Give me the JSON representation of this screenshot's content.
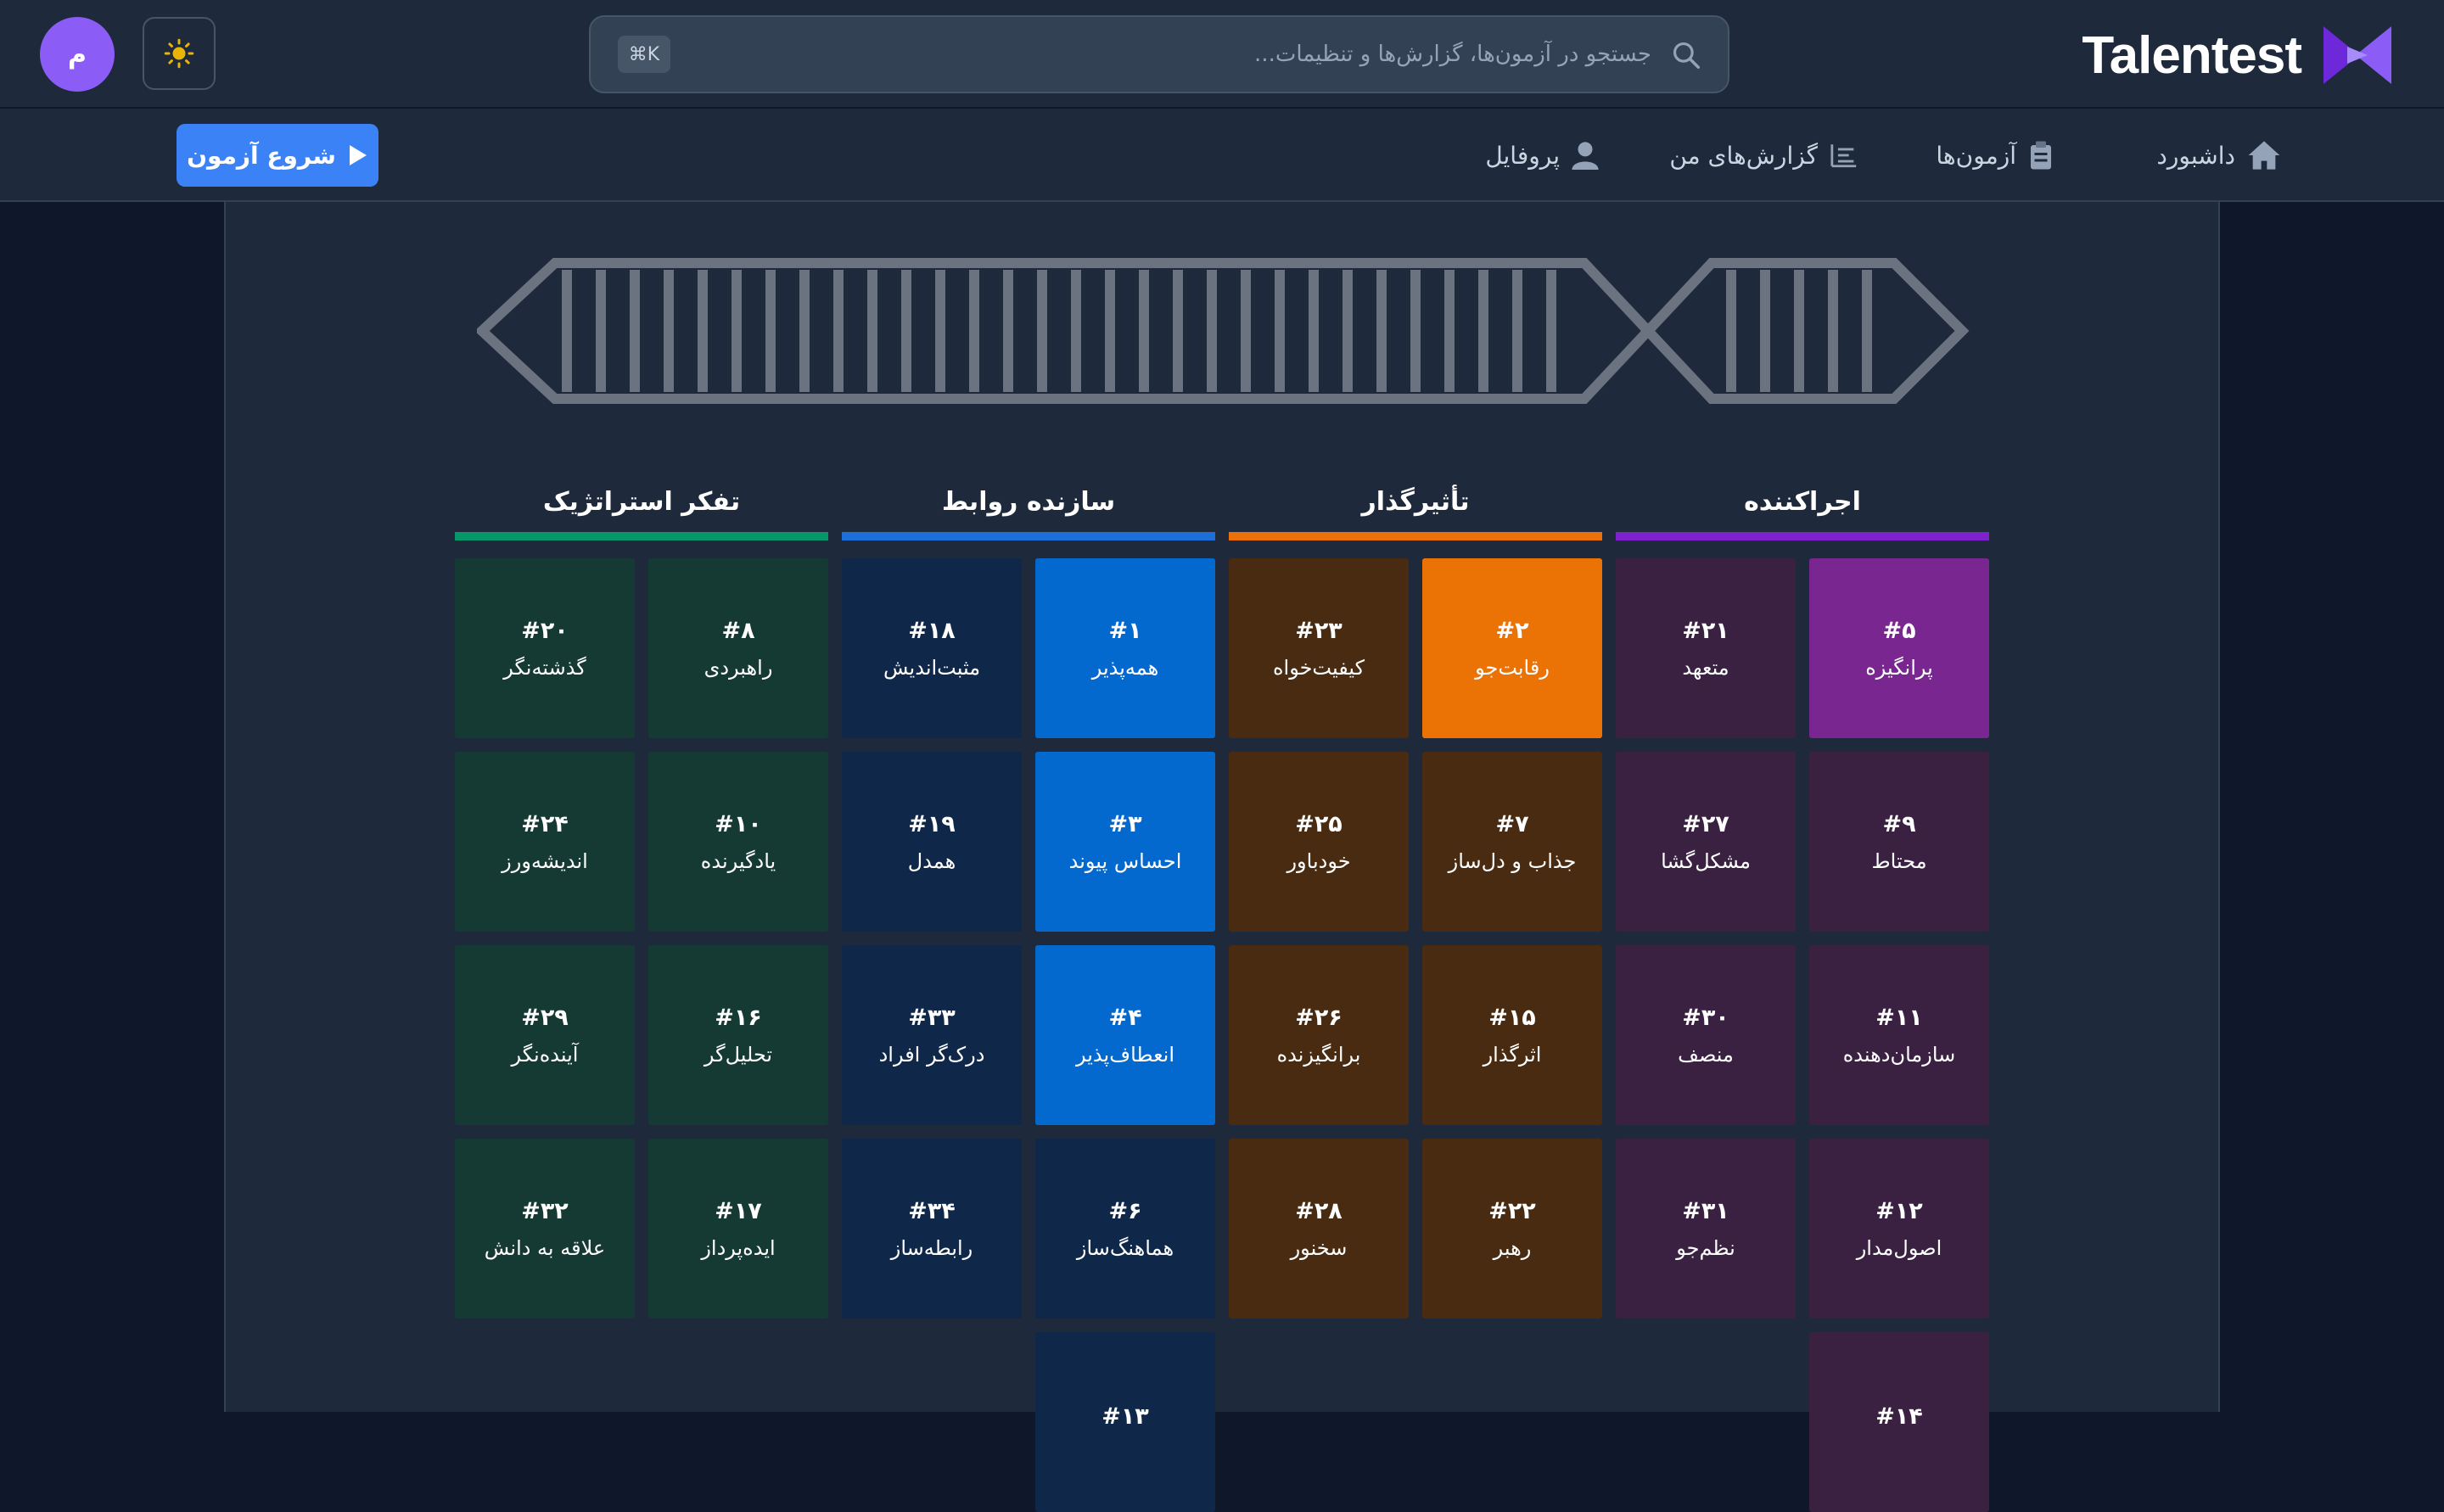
{
  "header": {
    "brand": "Talentest",
    "avatar_initial": "م",
    "search_placeholder": "جستجو در آزمون‌ها، گزارش‌ها و تنظیمات...",
    "search_shortcut": "⌘K"
  },
  "nav": {
    "dashboard": "داشبورد",
    "tests": "آزمون‌ها",
    "reports": "گزارش‌های من",
    "profile": "پروفایل",
    "start_button": "شروع آزمون"
  },
  "groups": [
    {
      "title": "اجراکننده",
      "color": "#7e22ce"
    },
    {
      "title": "تأثیرگذار",
      "color": "#ea7007"
    },
    {
      "title": "سازنده روابط",
      "color": "#1d6fd8"
    },
    {
      "title": "تفکر استراتژیک",
      "color": "#059669"
    }
  ],
  "colors": {
    "exec_strong": "#7a2691",
    "exec_weak": "#3a2142",
    "infl_strong": "#eb7305",
    "infl_weak": "#482b10",
    "rel_strong": "#0369cf",
    "rel_weak": "#0f284a",
    "strat_weak": "#143a33"
  },
  "tiles": [
    {
      "num": "#۵",
      "label": "پرانگیزه"
    },
    {
      "num": "#۲۱",
      "label": "متعهد"
    },
    {
      "num": "#۲",
      "label": "رقابت‌جو"
    },
    {
      "num": "#۲۳",
      "label": "کیفیت‌خواه"
    },
    {
      "num": "#۱",
      "label": "همه‌پذیر"
    },
    {
      "num": "#۱۸",
      "label": "مثبت‌اندیش"
    },
    {
      "num": "#۸",
      "label": "راهبردی"
    },
    {
      "num": "#۲۰",
      "label": "گذشته‌نگر"
    },
    {
      "num": "#۹",
      "label": "محتاط"
    },
    {
      "num": "#۲۷",
      "label": "مشکل‌گشا"
    },
    {
      "num": "#۷",
      "label": "جذاب و دل‌ساز"
    },
    {
      "num": "#۲۵",
      "label": "خودباور"
    },
    {
      "num": "#۳",
      "label": "احساس پیوند"
    },
    {
      "num": "#۱۹",
      "label": "همدل"
    },
    {
      "num": "#۱۰",
      "label": "یادگیرنده"
    },
    {
      "num": "#۲۴",
      "label": "اندیشه‌ورز"
    },
    {
      "num": "#۱۱",
      "label": "سازمان‌دهنده"
    },
    {
      "num": "#۳۰",
      "label": "منصف"
    },
    {
      "num": "#۱۵",
      "label": "اثرگذار"
    },
    {
      "num": "#۲۶",
      "label": "برانگیزنده"
    },
    {
      "num": "#۴",
      "label": "انعطاف‌پذیر"
    },
    {
      "num": "#۳۳",
      "label": "درک‌گر افراد"
    },
    {
      "num": "#۱۶",
      "label": "تحلیل‌گر"
    },
    {
      "num": "#۲۹",
      "label": "آینده‌نگر"
    },
    {
      "num": "#۱۲",
      "label": "اصول‌مدار"
    },
    {
      "num": "#۳۱",
      "label": "نظم‌جو"
    },
    {
      "num": "#۲۲",
      "label": "رهبر"
    },
    {
      "num": "#۲۸",
      "label": "سخنور"
    },
    {
      "num": "#۶",
      "label": "هماهنگ‌ساز"
    },
    {
      "num": "#۳۴",
      "label": "رابطه‌ساز"
    },
    {
      "num": "#۱۷",
      "label": "ایده‌پرداز"
    },
    {
      "num": "#۳۲",
      "label": "علاقه به دانش"
    },
    {
      "num": "#۱۴",
      "label": ""
    },
    {
      "num": "#۱۳",
      "label": ""
    }
  ]
}
